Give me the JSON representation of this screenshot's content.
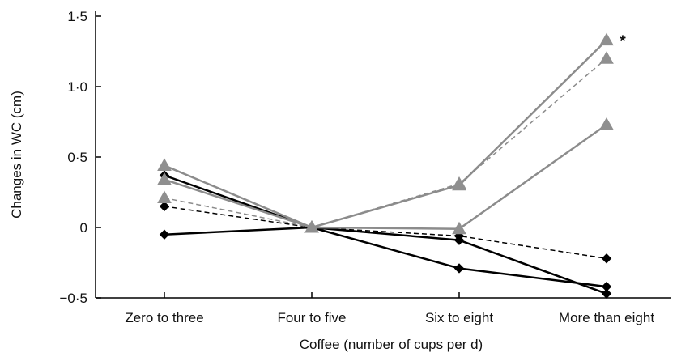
{
  "chart_data": {
    "type": "line",
    "categories": [
      "Zero to three",
      "Four to five",
      "Six to eight",
      "More than eight"
    ],
    "xlabel": "Coffee (number of cups per d)",
    "ylabel": "Changes in WC (cm)",
    "ylim": [
      -0.5,
      1.5
    ],
    "yticks": [
      {
        "value": 1.5,
        "label": "1·5"
      },
      {
        "value": 1.0,
        "label": "1·0"
      },
      {
        "value": 0.5,
        "label": "0·5"
      },
      {
        "value": 0,
        "label": "0"
      },
      {
        "value": -0.5,
        "label": "−0·5"
      }
    ],
    "grid": false,
    "series": [
      {
        "values": [
          0.44,
          0,
          0.3,
          1.33
        ],
        "marker": "triangle",
        "color": "#8c8c8c",
        "dash": "solid"
      },
      {
        "values": [
          0.34,
          0,
          -0.01,
          0.73
        ],
        "marker": "triangle",
        "color": "#8c8c8c",
        "dash": "solid"
      },
      {
        "values": [
          0.21,
          0,
          0.31,
          1.2
        ],
        "marker": "triangle",
        "color": "#8c8c8c",
        "dash": "dashed"
      },
      {
        "values": [
          0.37,
          0,
          -0.09,
          -0.47
        ],
        "marker": "diamond",
        "color": "#000000",
        "dash": "solid"
      },
      {
        "values": [
          -0.05,
          0,
          -0.29,
          -0.42
        ],
        "marker": "diamond",
        "color": "#000000",
        "dash": "solid"
      },
      {
        "values": [
          0.15,
          0,
          -0.06,
          -0.22
        ],
        "marker": "diamond",
        "color": "#000000",
        "dash": "dashed"
      }
    ],
    "annotations": [
      {
        "text": "*",
        "series": 0,
        "category": 3
      }
    ]
  }
}
